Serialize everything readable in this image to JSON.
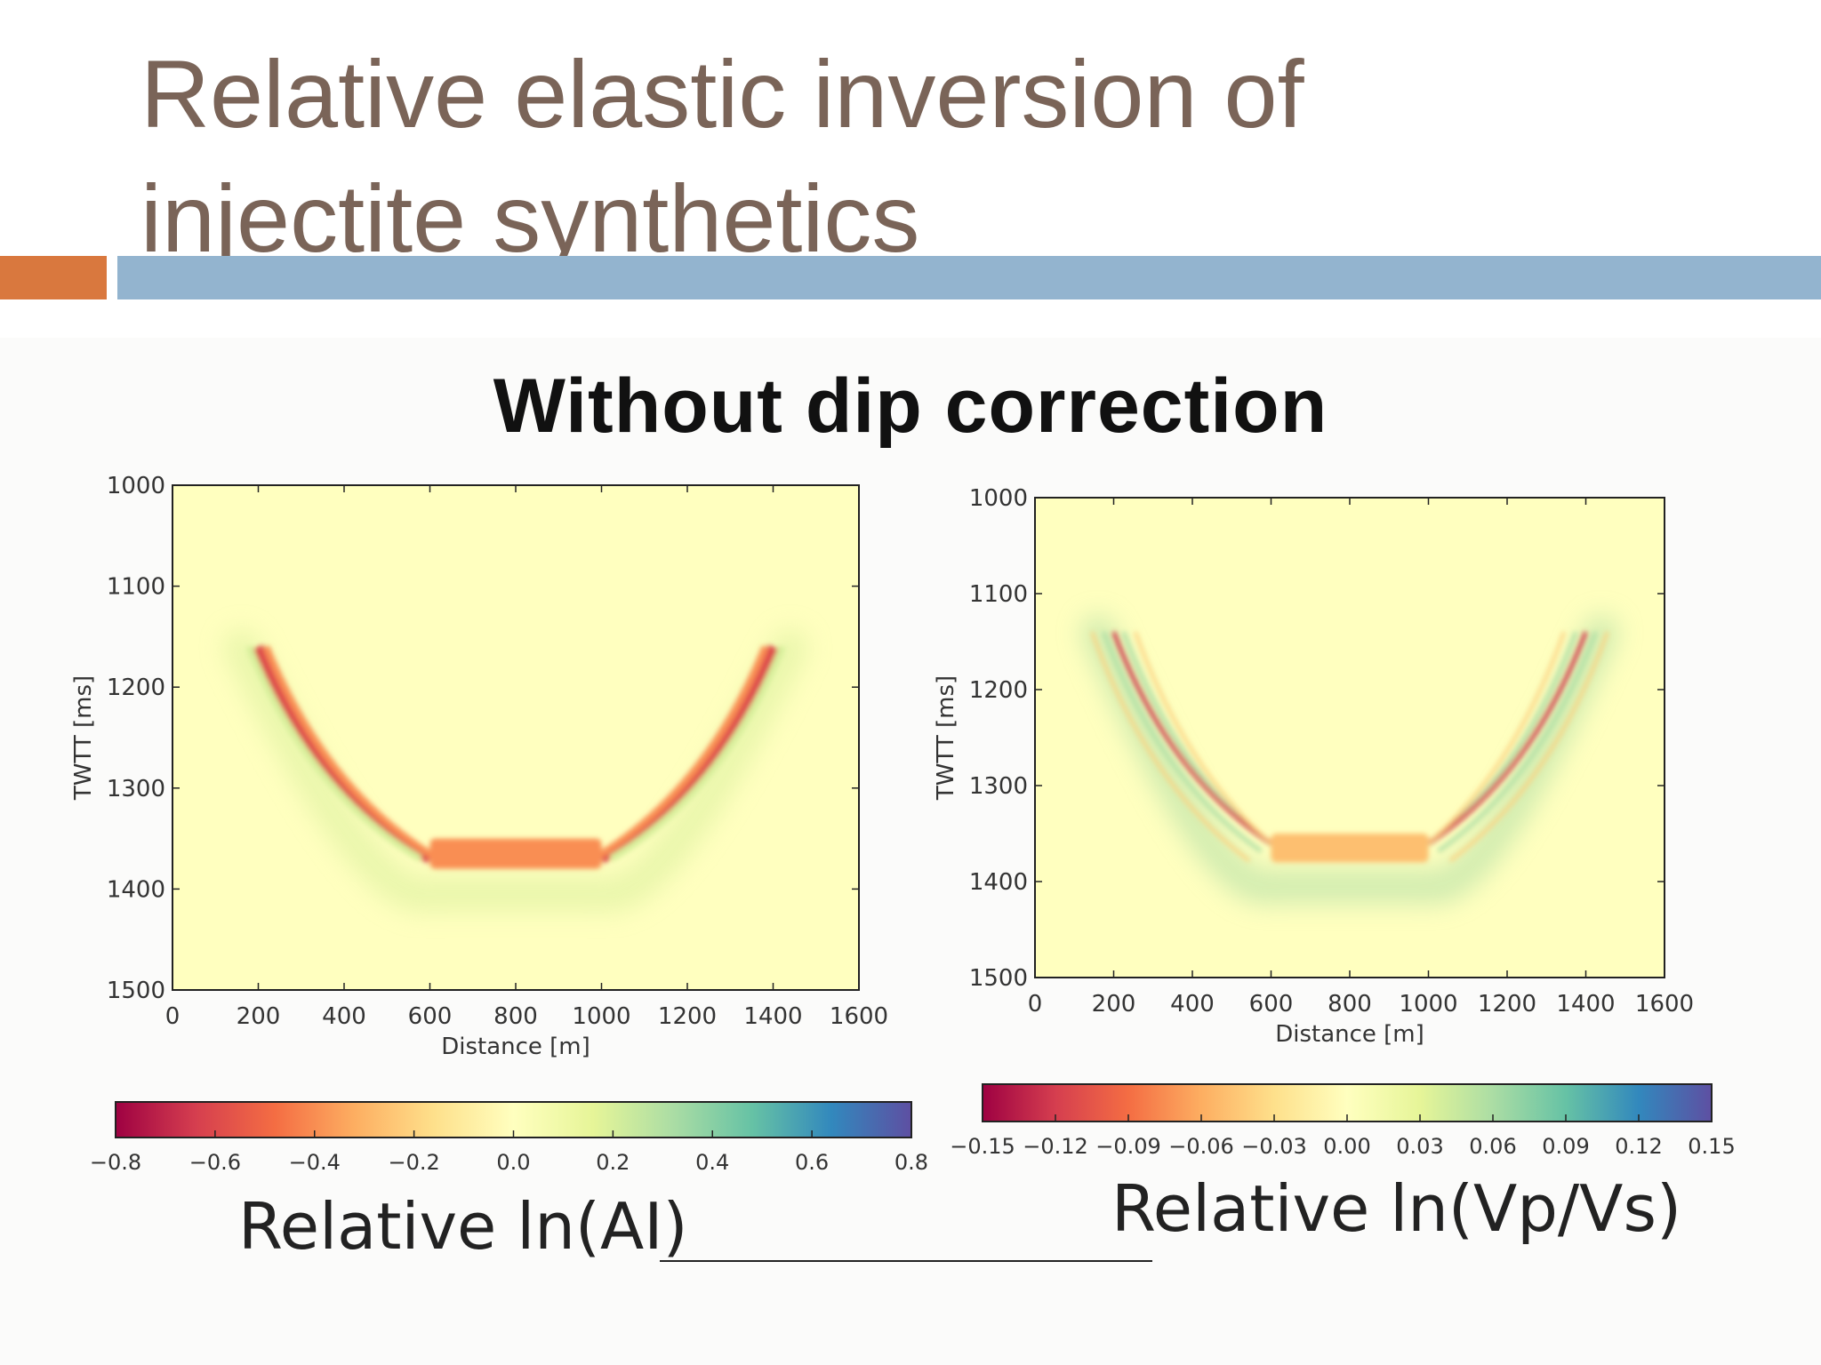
{
  "slide": {
    "title_line1": "Relative elastic inversion of",
    "title_line2": "injectite synthetics"
  },
  "figure": {
    "title": "Without dip correction"
  },
  "colors": {
    "title_text": "#7a6458",
    "accent_orange": "#d9783e",
    "accent_blue": "#93b4cf",
    "colormap": [
      "#9e0142",
      "#d53e4f",
      "#f46d43",
      "#fdae61",
      "#fee08b",
      "#ffffbf",
      "#e6f598",
      "#abdda4",
      "#66c2a5",
      "#3288bd",
      "#5e4fa2"
    ]
  },
  "chart_data": [
    {
      "type": "heatmap",
      "title": "",
      "xlabel": "Distance [m]",
      "ylabel": "TWTT [ms]",
      "xlim": [
        0,
        1600
      ],
      "ylim": [
        1500,
        1000
      ],
      "x_ticks": [
        0,
        200,
        400,
        600,
        800,
        1000,
        1200,
        1400,
        1600
      ],
      "y_ticks": [
        1000,
        1100,
        1200,
        1300,
        1400,
        1500
      ],
      "colorbar": {
        "label": "Relative ln(AI)",
        "range": [
          -0.8,
          0.8
        ],
        "ticks": [
          "-0.8",
          "-0.6",
          "-0.4",
          "-0.2",
          "0.0",
          "0.2",
          "0.4",
          "0.6",
          "0.8"
        ]
      },
      "features": {
        "trough": {
          "x_range": [
            600,
            1000
          ],
          "twtt": [
            1350,
            1380
          ],
          "value": -0.4
        },
        "left_limb": {
          "from": [
            200,
            1160
          ],
          "to": [
            600,
            1370
          ],
          "value": -0.6
        },
        "right_limb": {
          "from": [
            1400,
            1160
          ],
          "to": [
            1000,
            1370
          ],
          "value": -0.6
        },
        "side_lobe_value": 0.2
      }
    },
    {
      "type": "heatmap",
      "title": "",
      "xlabel": "Distance [m]",
      "ylabel": "TWTT [ms]",
      "xlim": [
        0,
        1600
      ],
      "ylim": [
        1500,
        1000
      ],
      "x_ticks": [
        0,
        200,
        400,
        600,
        800,
        1000,
        1200,
        1400,
        1600
      ],
      "y_ticks": [
        1000,
        1100,
        1200,
        1300,
        1400,
        1500
      ],
      "colorbar": {
        "label": "Relative ln(Vp/Vs)",
        "range": [
          -0.15,
          0.15
        ],
        "ticks": [
          "-0.15",
          "-0.12",
          "-0.09",
          "-0.06",
          "-0.03",
          "0.00",
          "0.03",
          "0.06",
          "0.09",
          "0.12",
          "0.15"
        ]
      },
      "features": {
        "trough": {
          "x_range": [
            600,
            1000
          ],
          "twtt": [
            1350,
            1380
          ],
          "value": -0.05
        },
        "left_limb": {
          "from": [
            200,
            1140
          ],
          "to": [
            600,
            1360
          ],
          "value": -0.12
        },
        "right_limb": {
          "from": [
            1400,
            1140
          ],
          "to": [
            1000,
            1360
          ],
          "value": -0.12
        },
        "side_lobe_value": 0.06
      }
    }
  ]
}
